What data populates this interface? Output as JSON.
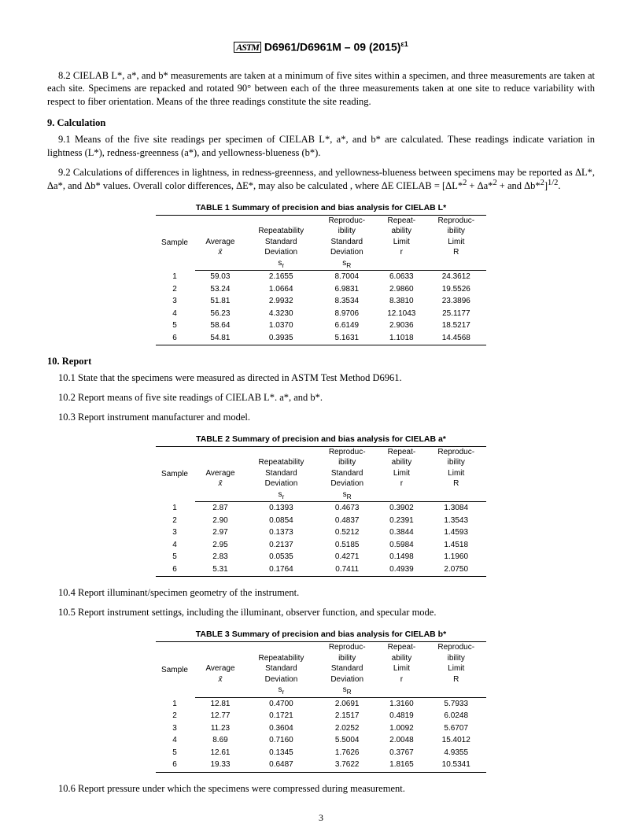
{
  "header": {
    "designation": "D6961/D6961M – 09 (2015)",
    "epsilon": "ε1"
  },
  "paras": {
    "p82": "8.2 CIELAB L*, a*, and b* measurements are taken at a minimum of five sites within a specimen, and three measurements are taken at each site. Specimens are repacked and rotated 90° between each of the three measurements taken at one site to reduce variability with respect to fiber orientation. Means of the three readings constitute the site reading.",
    "s9": "9.  Calculation",
    "p91": "9.1 Means of the five site readings per specimen of CIELAB L*, a*, and b* are calculated. These readings indicate variation in lightness (L*), redness-greenness (a*), and yellowness-blueness (b*).",
    "p92a": "9.2 Calculations of differences in lightness, in redness-greenness, and yellowness-blueness between specimens may be reported as ΔL*, Δa*, and Δb* values. Overall color differences, ΔE*, may also be calculated , where ΔE CIELAB = [ΔL*",
    "p92b": " + Δa*",
    "p92c": " + and Δb*",
    "p92d": "]",
    "p92e": ".",
    "s10": "10.  Report",
    "p101": "10.1 State that the specimens were measured as directed in ASTM Test Method D6961.",
    "p102": "10.2 Report means of five site readings of CIELAB L*. a*, and b*.",
    "p103": "10.3 Report instrument manufacturer and model.",
    "p104": "10.4 Report illuminant/specimen geometry of the instrument.",
    "p105": "10.5 Report instrument settings, including the illuminant, observer function, and specular mode.",
    "p106": "10.6 Report pressure under which the specimens were compressed during measurement."
  },
  "tableHeaders": {
    "c0": "Sample",
    "c1a": "Average",
    "c1b": "x̄",
    "c2a": "Repeatability",
    "c2b": "Standard",
    "c2c": "Deviation",
    "c2d": "s",
    "c2e": "r",
    "c3a": "Reproduc-",
    "c3b": "ibility",
    "c3c": "Standard",
    "c3d": "Deviation",
    "c3e": "s",
    "c3f": "R",
    "c4a": "Repeat-",
    "c4b": "ability",
    "c4c": "Limit",
    "c4d": "r",
    "c5a": "Reproduc-",
    "c5b": "ibility",
    "c5c": "Limit",
    "c5d": "R"
  },
  "tables": {
    "t1": {
      "title": "TABLE 1 Summary of precision and bias analysis for CIELAB L*",
      "rows": [
        [
          "1",
          "59.03",
          "2.1655",
          "8.7004",
          "6.0633",
          "24.3612"
        ],
        [
          "2",
          "53.24",
          "1.0664",
          "6.9831",
          "2.9860",
          "19.5526"
        ],
        [
          "3",
          "51.81",
          "2.9932",
          "8.3534",
          "8.3810",
          "23.3896"
        ],
        [
          "4",
          "56.23",
          "4.3230",
          "8.9706",
          "12.1043",
          "25.1177"
        ],
        [
          "5",
          "58.64",
          "1.0370",
          "6.6149",
          "2.9036",
          "18.5217"
        ],
        [
          "6",
          "54.81",
          "0.3935",
          "5.1631",
          "1.1018",
          "14.4568"
        ]
      ]
    },
    "t2": {
      "title": "TABLE 2 Summary of precision and bias analysis for CIELAB a*",
      "rows": [
        [
          "1",
          "2.87",
          "0.1393",
          "0.4673",
          "0.3902",
          "1.3084"
        ],
        [
          "2",
          "2.90",
          "0.0854",
          "0.4837",
          "0.2391",
          "1.3543"
        ],
        [
          "3",
          "2.97",
          "0.1373",
          "0.5212",
          "0.3844",
          "1.4593"
        ],
        [
          "4",
          "2.95",
          "0.2137",
          "0.5185",
          "0.5984",
          "1.4518"
        ],
        [
          "5",
          "2.83",
          "0.0535",
          "0.4271",
          "0.1498",
          "1.1960"
        ],
        [
          "6",
          "5.31",
          "0.1764",
          "0.7411",
          "0.4939",
          "2.0750"
        ]
      ]
    },
    "t3": {
      "title": "TABLE 3 Summary of precision and bias analysis for CIELAB b*",
      "rows": [
        [
          "1",
          "12.81",
          "0.4700",
          "2.0691",
          "1.3160",
          "5.7933"
        ],
        [
          "2",
          "12.77",
          "0.1721",
          "2.1517",
          "0.4819",
          "6.0248"
        ],
        [
          "3",
          "11.23",
          "0.3604",
          "2.0252",
          "1.0092",
          "5.6707"
        ],
        [
          "4",
          "8.69",
          "0.7160",
          "5.5004",
          "2.0048",
          "15.4012"
        ],
        [
          "5",
          "12.61",
          "0.1345",
          "1.7626",
          "0.3767",
          "4.9355"
        ],
        [
          "6",
          "19.33",
          "0.6487",
          "3.7622",
          "1.8165",
          "10.5341"
        ]
      ]
    }
  },
  "pageNumber": "3"
}
